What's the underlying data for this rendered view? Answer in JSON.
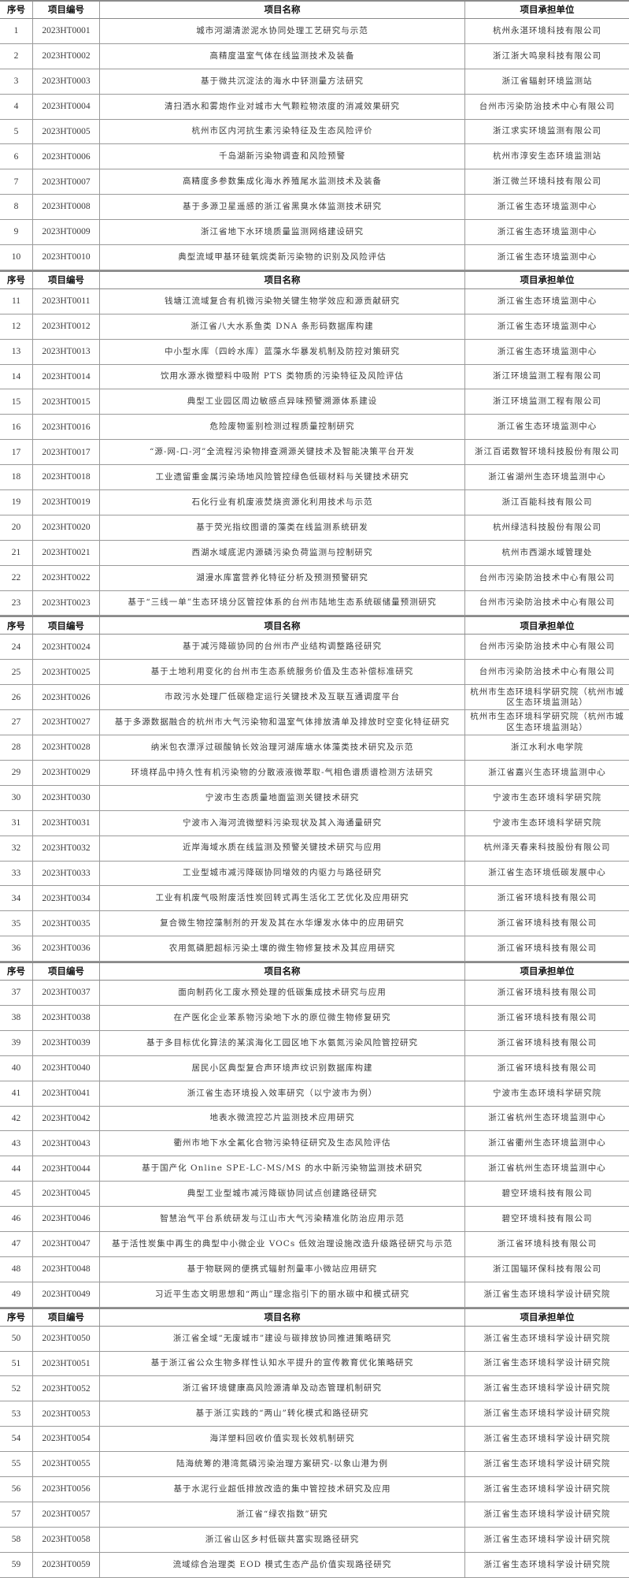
{
  "header": {
    "seq": "序号",
    "code": "项目编号",
    "name": "项目名称",
    "unit": "项目承担单位"
  },
  "sections": [
    {
      "rows": [
        {
          "seq": "1",
          "code": "2023HT0001",
          "name": "城市河湖清淤泥水协同处理工艺研究与示范",
          "unit": "杭州永湛环境科技有限公司"
        },
        {
          "seq": "2",
          "code": "2023HT0002",
          "name": "高精度温室气体在线监测技术及装备",
          "unit": "浙江浙大鸣泉科技有限公司"
        },
        {
          "seq": "3",
          "code": "2023HT0003",
          "name": "基于微共沉淀法的海水中钚测量方法研究",
          "unit": "浙江省辐射环境监测站"
        },
        {
          "seq": "4",
          "code": "2023HT0004",
          "name": "清扫洒水和雾炮作业对城市大气颗粒物浓度的消减效果研究",
          "unit": "台州市污染防治技术中心有限公司"
        },
        {
          "seq": "5",
          "code": "2023HT0005",
          "name": "杭州市区内河抗生素污染特征及生态风险评价",
          "unit": "浙江求实环境监测有限公司"
        },
        {
          "seq": "6",
          "code": "2023HT0006",
          "name": "千岛湖新污染物调查和风险预警",
          "unit": "杭州市淳安生态环境监测站"
        },
        {
          "seq": "7",
          "code": "2023HT0007",
          "name": "高精度多参数集成化海水养殖尾水监测技术及装备",
          "unit": "浙江微兰环境科技有限公司"
        },
        {
          "seq": "8",
          "code": "2023HT0008",
          "name": "基于多源卫星遥感的浙江省黑臭水体监测技术研究",
          "unit": "浙江省生态环境监测中心"
        },
        {
          "seq": "9",
          "code": "2023HT0009",
          "name": "浙江省地下水环境质量监测网络建设研究",
          "unit": "浙江省生态环境监测中心"
        },
        {
          "seq": "10",
          "code": "2023HT0010",
          "name": "典型流域甲基环硅氧烷类新污染物的识别及风险评估",
          "unit": "浙江省生态环境监测中心"
        }
      ]
    },
    {
      "rows": [
        {
          "seq": "11",
          "code": "2023HT0011",
          "name": "钱塘江流域复合有机微污染物关键生物学效应和源贡献研究",
          "unit": "浙江省生态环境监测中心"
        },
        {
          "seq": "12",
          "code": "2023HT0012",
          "name": "浙江省八大水系鱼类 DNA 条形码数据库构建",
          "unit": "浙江省生态环境监测中心"
        },
        {
          "seq": "13",
          "code": "2023HT0013",
          "name": "中小型水库（四岭水库）蓝藻水华暴发机制及防控对策研究",
          "unit": "浙江省生态环境监测中心"
        },
        {
          "seq": "14",
          "code": "2023HT0014",
          "name": "饮用水源水微塑料中吸附 PTS 类物质的污染特征及风险评估",
          "unit": "浙江环境监测工程有限公司"
        },
        {
          "seq": "15",
          "code": "2023HT0015",
          "name": "典型工业园区周边敏感点异味预警溯源体系建设",
          "unit": "浙江环境监测工程有限公司"
        },
        {
          "seq": "16",
          "code": "2023HT0016",
          "name": "危险废物鉴别检测过程质量控制研究",
          "unit": "浙江省生态环境监测中心"
        },
        {
          "seq": "17",
          "code": "2023HT0017",
          "name": "“源-网-口-河”全流程污染物排查溯源关键技术及智能决策平台开发",
          "unit": "浙江百诺数智环境科技股份有限公司"
        },
        {
          "seq": "18",
          "code": "2023HT0018",
          "name": "工业遗留重金属污染场地风险管控绿色低碳材料与关键技术研究",
          "unit": "浙江省湖州生态环境监测中心"
        },
        {
          "seq": "19",
          "code": "2023HT0019",
          "name": "石化行业有机废液焚烧资源化利用技术与示范",
          "unit": "浙江百能科技有限公司"
        },
        {
          "seq": "20",
          "code": "2023HT0020",
          "name": "基于荧光指纹图谱的藻类在线监测系统研发",
          "unit": "杭州绿洁科技股份有限公司"
        },
        {
          "seq": "21",
          "code": "2023HT0021",
          "name": "西湖水域底泥内源磷污染负荷监测与控制研究",
          "unit": "杭州市西湖水域管理处"
        },
        {
          "seq": "22",
          "code": "2023HT0022",
          "name": "湖漫水库富营养化特征分析及预测预警研究",
          "unit": "台州市污染防治技术中心有限公司"
        },
        {
          "seq": "23",
          "code": "2023HT0023",
          "name": "基于“三线一单”生态环境分区管控体系的台州市陆地生态系统碳储量预测研究",
          "unit": "台州市污染防治技术中心有限公司"
        }
      ]
    },
    {
      "rows": [
        {
          "seq": "24",
          "code": "2023HT0024",
          "name": "基于减污降碳协同的台州市产业结构调整路径研究",
          "unit": "台州市污染防治技术中心有限公司"
        },
        {
          "seq": "25",
          "code": "2023HT0025",
          "name": "基于土地利用变化的台州市生态系统服务价值及生态补偿标准研究",
          "unit": "台州市污染防治技术中心有限公司"
        },
        {
          "seq": "26",
          "code": "2023HT0026",
          "name": "市政污水处理厂低碳稳定运行关键技术及互联互通调度平台",
          "unit": "杭州市生态环境科学研究院（杭州市城区生态环境监测站）"
        },
        {
          "seq": "27",
          "code": "2023HT0027",
          "name": "基于多源数据融合的杭州市大气污染物和温室气体排放清单及排放时空变化特征研究",
          "unit": "杭州市生态环境科学研究院（杭州市城区生态环境监测站）"
        },
        {
          "seq": "28",
          "code": "2023HT0028",
          "name": "纳米包衣漂浮过碳酸钠长效治理河湖库塘水体藻类技术研究及示范",
          "unit": "浙江水利水电学院"
        },
        {
          "seq": "29",
          "code": "2023HT0029",
          "name": "环境样品中持久性有机污染物的分散液液微萃取-气相色谱质谱检测方法研究",
          "unit": "浙江省嘉兴生态环境监测中心"
        },
        {
          "seq": "30",
          "code": "2023HT0030",
          "name": "宁波市生态质量地面监测关键技术研究",
          "unit": "宁波市生态环境科学研究院"
        },
        {
          "seq": "31",
          "code": "2023HT0031",
          "name": "宁波市入海河流微塑料污染现状及其入海通量研究",
          "unit": "宁波市生态环境科学研究院"
        },
        {
          "seq": "32",
          "code": "2023HT0032",
          "name": "近岸海域水质在线监测及预警关键技术研究与应用",
          "unit": "杭州泽天春来科技股份有限公司"
        },
        {
          "seq": "33",
          "code": "2023HT0033",
          "name": "工业型城市减污降碳协同增效的内驱力与路径研究",
          "unit": "浙江省生态环境低碳发展中心"
        },
        {
          "seq": "34",
          "code": "2023HT0034",
          "name": "工业有机废气吸附废活性炭回转式再生活化工艺优化及应用研究",
          "unit": "浙江省环境科技有限公司"
        },
        {
          "seq": "35",
          "code": "2023HT0035",
          "name": "复合微生物控藻制剂的开发及其在水华爆发水体中的应用研究",
          "unit": "浙江省环境科技有限公司"
        },
        {
          "seq": "36",
          "code": "2023HT0036",
          "name": "农用氮磷肥超标污染土壤的微生物修复技术及其应用研究",
          "unit": "浙江省环境科技有限公司"
        }
      ]
    },
    {
      "rows": [
        {
          "seq": "37",
          "code": "2023HT0037",
          "name": "面向制药化工废水预处理的低碳集成技术研究与应用",
          "unit": "浙江省环境科技有限公司"
        },
        {
          "seq": "38",
          "code": "2023HT0038",
          "name": "在产医化企业苯系物污染地下水的原位微生物修复研究",
          "unit": "浙江省环境科技有限公司"
        },
        {
          "seq": "39",
          "code": "2023HT0039",
          "name": "基于多目标优化算法的某滨海化工园区地下水氨氮污染风险管控研究",
          "unit": "浙江省环境科技有限公司"
        },
        {
          "seq": "40",
          "code": "2023HT0040",
          "name": "居民小区典型复合声环境声纹识别数据库构建",
          "unit": "浙江省环境科技有限公司"
        },
        {
          "seq": "41",
          "code": "2023HT0041",
          "name": "浙江省生态环境投入效率研究（以宁波市为例）",
          "unit": "宁波市生态环境科学研究院"
        },
        {
          "seq": "42",
          "code": "2023HT0042",
          "name": "地表水微流控芯片监测技术应用研究",
          "unit": "浙江省杭州生态环境监测中心"
        },
        {
          "seq": "43",
          "code": "2023HT0043",
          "name": "衢州市地下水全氟化合物污染特征研究及生态风险评估",
          "unit": "浙江省衢州生态环境监测中心"
        },
        {
          "seq": "44",
          "code": "2023HT0044",
          "name": "基于国产化 Online SPE-LC-MS/MS 的水中新污染物监测技术研究",
          "unit": "浙江省杭州生态环境监测中心"
        },
        {
          "seq": "45",
          "code": "2023HT0045",
          "name": "典型工业型城市减污降碳协同试点创建路径研究",
          "unit": "碧空环境科技有限公司"
        },
        {
          "seq": "46",
          "code": "2023HT0046",
          "name": "智慧治气平台系统研发与江山市大气污染精准化防治应用示范",
          "unit": "碧空环境科技有限公司"
        },
        {
          "seq": "47",
          "code": "2023HT0047",
          "name": "基于活性炭集中再生的典型中小微企业 VOCs 低效治理设施改造升级路径研究与示范",
          "unit": "浙江省环境科技有限公司"
        },
        {
          "seq": "48",
          "code": "2023HT0048",
          "name": "基于物联网的便携式辐射剂量率小微站应用研究",
          "unit": "浙江国辐环保科技有限公司"
        },
        {
          "seq": "49",
          "code": "2023HT0049",
          "name": "习近平生态文明思想和“两山”理念指引下的丽水碳中和模式研究",
          "unit": "浙江省生态环境科学设计研究院"
        }
      ]
    },
    {
      "rows": [
        {
          "seq": "50",
          "code": "2023HT0050",
          "name": "浙江省全域“无废城市”建设与碳排放协同推进策略研究",
          "unit": "浙江省生态环境科学设计研究院"
        },
        {
          "seq": "51",
          "code": "2023HT0051",
          "name": "基于浙江省公众生物多样性认知水平提升的宣传教育优化策略研究",
          "unit": "浙江省生态环境科学设计研究院"
        },
        {
          "seq": "52",
          "code": "2023HT0052",
          "name": "浙江省环境健康高风险源清单及动态管理机制研究",
          "unit": "浙江省生态环境科学设计研究院"
        },
        {
          "seq": "53",
          "code": "2023HT0053",
          "name": "基于浙江实践的“两山”转化模式和路径研究",
          "unit": "浙江省生态环境科学设计研究院"
        },
        {
          "seq": "54",
          "code": "2023HT0054",
          "name": "海洋塑料回收价值实现长效机制研究",
          "unit": "浙江省生态环境科学设计研究院"
        },
        {
          "seq": "55",
          "code": "2023HT0055",
          "name": "陆海统筹的港湾氮磷污染治理方案研究-以象山港为例",
          "unit": "浙江省生态环境科学设计研究院"
        },
        {
          "seq": "56",
          "code": "2023HT0056",
          "name": "基于水泥行业超低排放改造的集中管控技术研究及应用",
          "unit": "浙江省生态环境科学设计研究院"
        },
        {
          "seq": "57",
          "code": "2023HT0057",
          "name": "浙江省“绿农指数”研究",
          "unit": "浙江省生态环境科学设计研究院"
        },
        {
          "seq": "58",
          "code": "2023HT0058",
          "name": "浙江省山区乡村低碳共富实现路径研究",
          "unit": "浙江省生态环境科学设计研究院"
        },
        {
          "seq": "59",
          "code": "2023HT0059",
          "name": "流域综合治理类 EOD 模式生态产品价值实现路径研究",
          "unit": "浙江省生态环境科学设计研究院"
        }
      ]
    }
  ]
}
